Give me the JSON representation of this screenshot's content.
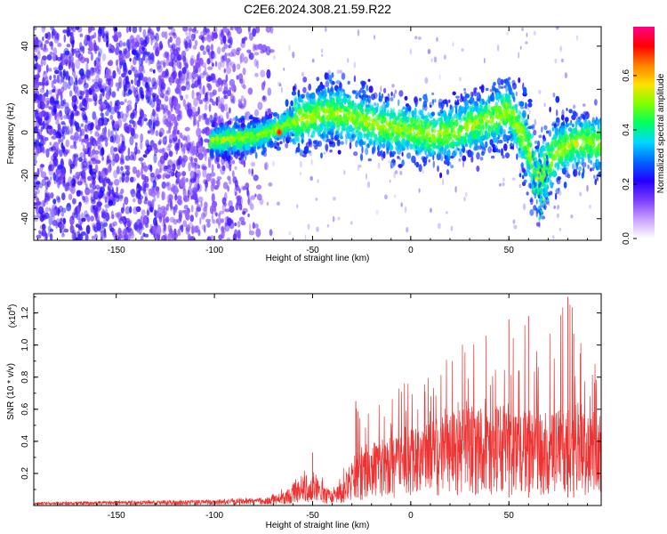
{
  "title": "C2E6.2024.308.21.59.R22",
  "chart_data": [
    {
      "type": "heatmap",
      "xlabel": "Height of straight line (km)",
      "ylabel": "Frequency (Hz)",
      "xlim": [
        -192,
        97
      ],
      "ylim": [
        -50,
        49
      ],
      "xticks": [
        -150,
        -100,
        -50,
        0,
        50
      ],
      "yticks": [
        -40,
        -20,
        0,
        20,
        40
      ],
      "colorbar": {
        "label": "Normalized spectral amplitude",
        "range": [
          0.0,
          0.78
        ],
        "ticks": [
          0.0,
          0.2,
          0.4,
          0.6
        ],
        "tick_labels": [
          "0.0",
          "0.2",
          "0.4",
          "0.6"
        ],
        "colormap": [
          "#ffffff",
          "#c8a0ff",
          "#7a3cff",
          "#2200ff",
          "#0066ff",
          "#00d8ff",
          "#00ff60",
          "#80ff00",
          "#ffe000",
          "#ff8000",
          "#ff0000",
          "#ff0088"
        ]
      },
      "ridge": {
        "description_points_x": [
          -100,
          -90,
          -80,
          -70,
          -60,
          -50,
          -40,
          -30,
          -20,
          -10,
          0,
          10,
          20,
          30,
          40,
          50,
          55,
          60,
          65,
          70,
          75,
          80,
          85,
          90,
          95
        ],
        "description_points_y": [
          -4,
          -3,
          -2,
          1,
          5,
          8,
          9,
          7,
          4,
          2,
          1,
          -1,
          0,
          3,
          6,
          10,
          2,
          -8,
          -22,
          -14,
          -8,
          -6,
          -5,
          -4,
          -5
        ]
      }
    },
    {
      "type": "line",
      "xlabel": "Height of straight line (km)",
      "ylabel": "SNR (10 * v/v)",
      "multiplier": "(x10",
      "multiplier_exp": "4",
      "xlim": [
        -192,
        97
      ],
      "ylim": [
        0,
        1.32
      ],
      "xticks": [
        -150,
        -100,
        -50,
        0,
        50
      ],
      "yticks": [
        0.2,
        0.4,
        0.6,
        0.8,
        1.0,
        1.2
      ],
      "color": "#ee3333",
      "envelope": {
        "x": [
          -192,
          -150,
          -100,
          -80,
          -70,
          -60,
          -55,
          -50,
          -45,
          -40,
          -35,
          -30,
          -25,
          -20,
          -10,
          0,
          10,
          20,
          30,
          40,
          50,
          60,
          70,
          80,
          90,
          97
        ],
        "peak": [
          0.02,
          0.03,
          0.04,
          0.05,
          0.07,
          0.15,
          0.22,
          0.33,
          0.18,
          0.1,
          0.2,
          0.65,
          0.55,
          0.6,
          0.75,
          0.8,
          0.85,
          0.92,
          1.05,
          1.06,
          1.15,
          1.18,
          1.05,
          1.3,
          1.02,
          0.8
        ],
        "mean": [
          0.015,
          0.02,
          0.025,
          0.03,
          0.04,
          0.08,
          0.12,
          0.15,
          0.09,
          0.06,
          0.1,
          0.2,
          0.22,
          0.25,
          0.3,
          0.33,
          0.36,
          0.4,
          0.42,
          0.42,
          0.44,
          0.43,
          0.4,
          0.42,
          0.38,
          0.35
        ]
      }
    }
  ]
}
